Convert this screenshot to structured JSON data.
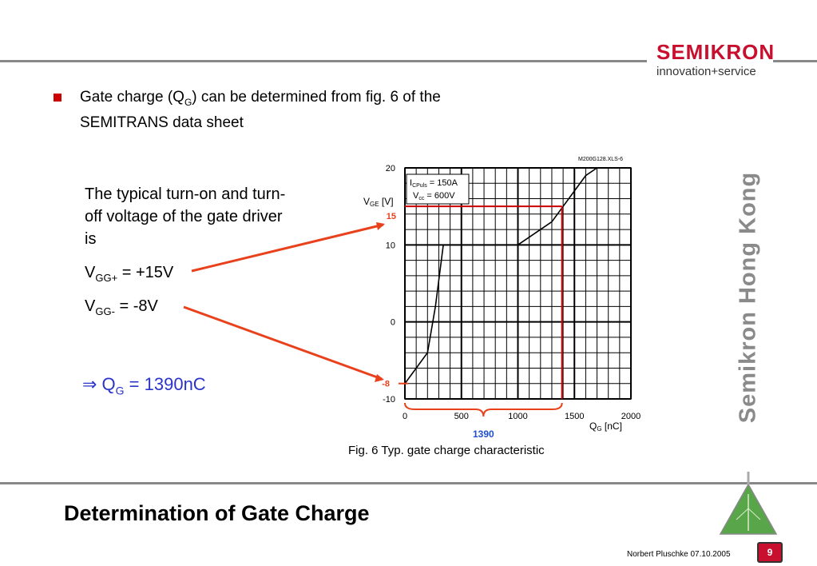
{
  "logo": {
    "wordmark": "SEMIKRON",
    "tagline": "innovation+service"
  },
  "bullet": {
    "text_before": "Gate charge (Q",
    "subscript": "G",
    "text_after": ") can be determined from fig. 6 of the",
    "line2": "SEMITRANS data sheet"
  },
  "left_panel": {
    "paragraph": "The typical turn-on and turn-off voltage of the gate driver is",
    "vgg_plus": {
      "prefix": "V",
      "sub": "GG+",
      "suffix": " = +15V"
    },
    "vgg_minus": {
      "prefix": "V",
      "sub": "GG-",
      "suffix": " = -8V"
    },
    "result": {
      "arrow": "⇒ Q",
      "sub": "G",
      "suffix": " = 1390nC"
    }
  },
  "vertical_label": "Semikron Hong Kong",
  "slide_title": "Determination of Gate Charge",
  "footer": {
    "author_date": "Norbert Pluschke  07.10.2005",
    "page_number": "9"
  },
  "colors": {
    "brand_red": "#c8102e",
    "annotation_red": "#e8411c",
    "result_blue": "#2a34c8",
    "rule_gray": "#888888"
  },
  "chart_data": {
    "type": "line",
    "file_label": "M200G128.XLS-6",
    "caption": "Fig. 6 Typ. gate charge characteristic",
    "ylabel_main": "V",
    "ylabel_sub": "GE",
    "ylabel_unit": " [V]",
    "xlabel_main": "Q",
    "xlabel_sub": "G",
    "xlabel_unit": " [nC]",
    "xlim": [
      0,
      2000
    ],
    "ylim": [
      -10,
      20
    ],
    "x_ticks": [
      0,
      500,
      1000,
      1500,
      2000
    ],
    "y_ticks": [
      20,
      10,
      0,
      -10
    ],
    "x_minor_step": 100,
    "y_minor_step": 2,
    "grid": true,
    "legend": {
      "line1_main": "I",
      "line1_sub": "CPuls",
      "line1_val": " = 150A",
      "line2_main": "V",
      "line2_sub": "cc",
      "line2_val": " = 600V"
    },
    "series": [
      {
        "x": [
          0,
          100,
          200,
          270,
          340,
          500,
          800,
          1000,
          1100,
          1200,
          1300,
          1400,
          1500,
          1600,
          1700
        ],
        "y": [
          -8,
          -6,
          -4,
          2,
          10,
          10,
          10,
          10,
          11,
          12,
          13,
          15,
          17,
          19,
          20
        ]
      }
    ],
    "annotations": {
      "y_marker_high": "15",
      "y_marker_low": "-8",
      "x_marker": "1390",
      "y_high": 15,
      "y_low": -8,
      "x_value": 1390
    }
  }
}
